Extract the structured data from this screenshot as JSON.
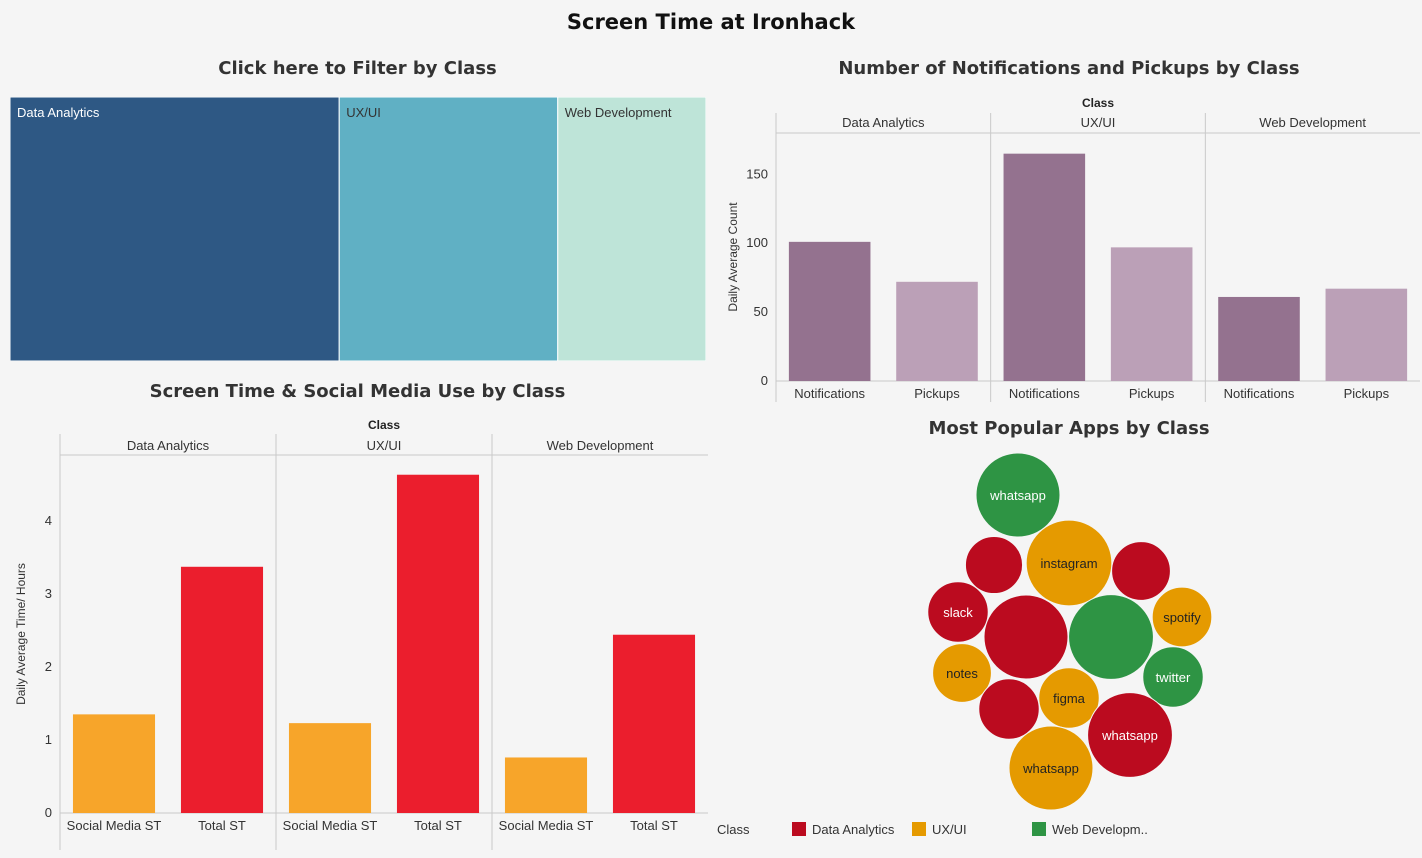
{
  "title": "Screen Time at Ironhack",
  "colors": {
    "data_analytics": "#bb0b1f",
    "ux_ui": "#e59a00",
    "web_development": "#2e9444"
  },
  "legend": {
    "title": "Class",
    "items": [
      "Data Analytics",
      "UX/UI",
      "Web Developm.."
    ]
  },
  "chart_data": [
    {
      "type": "treemap",
      "title": "Click here to Filter by Class",
      "categories": [
        "Data Analytics",
        "UX/UI",
        "Web Development"
      ],
      "values": [
        47.3,
        31.4,
        21.3
      ],
      "colors": [
        "#2e5884",
        "#60b0c4",
        "#bee4d8"
      ]
    },
    {
      "type": "bar",
      "title": "Number of Notifications and Pickups by Class",
      "header": "Class",
      "groups": [
        "Data Analytics",
        "UX/UI",
        "Web Development"
      ],
      "categories": [
        "Notifications",
        "Pickups"
      ],
      "values": [
        [
          101,
          72
        ],
        [
          165,
          97
        ],
        [
          61,
          67
        ]
      ],
      "colors": [
        "#94728f",
        "#bba0b7"
      ],
      "ylabel": "Daily Average Count",
      "ylim": [
        0,
        180
      ],
      "yticks": [
        0,
        50,
        100,
        150
      ]
    },
    {
      "type": "bar",
      "title": "Screen Time & Social Media Use by Class",
      "header": "Class",
      "groups": [
        "Data Analytics",
        "UX/UI",
        "Web Development"
      ],
      "categories": [
        "Social Media ST",
        "Total ST"
      ],
      "values": [
        [
          1.35,
          3.37
        ],
        [
          1.23,
          4.63
        ],
        [
          0.76,
          2.44
        ]
      ],
      "colors": [
        "#f7a52a",
        "#eb1e2d"
      ],
      "ylabel": "Daily Average Time/ Hours",
      "ylim": [
        0,
        4.9
      ],
      "yticks": [
        0,
        1,
        2,
        3,
        4
      ]
    },
    {
      "type": "bubble",
      "title": "Most Popular Apps by Class",
      "bubbles": [
        {
          "label": "whatsapp",
          "class": "Web Development",
          "size": 1
        },
        {
          "label": "",
          "class": "Data Analytics",
          "size": 0.68
        },
        {
          "label": "instagram",
          "class": "UX/UI",
          "size": 1.02
        },
        {
          "label": "",
          "class": "Data Analytics",
          "size": 0.7
        },
        {
          "label": "slack",
          "class": "Data Analytics",
          "size": 0.72
        },
        {
          "label": "",
          "class": "Data Analytics",
          "size": 1.0
        },
        {
          "label": "",
          "class": "Web Development",
          "size": 1.01
        },
        {
          "label": "spotify",
          "class": "UX/UI",
          "size": 0.71
        },
        {
          "label": "notes",
          "class": "UX/UI",
          "size": 0.7
        },
        {
          "label": "twitter",
          "class": "Web Development",
          "size": 0.72
        },
        {
          "label": "",
          "class": "Data Analytics",
          "size": 0.72
        },
        {
          "label": "figma",
          "class": "UX/UI",
          "size": 0.72
        },
        {
          "label": "whatsapp",
          "class": "Data Analytics",
          "size": 1.01
        },
        {
          "label": "whatsapp",
          "class": "UX/UI",
          "size": 1.0
        }
      ]
    }
  ]
}
